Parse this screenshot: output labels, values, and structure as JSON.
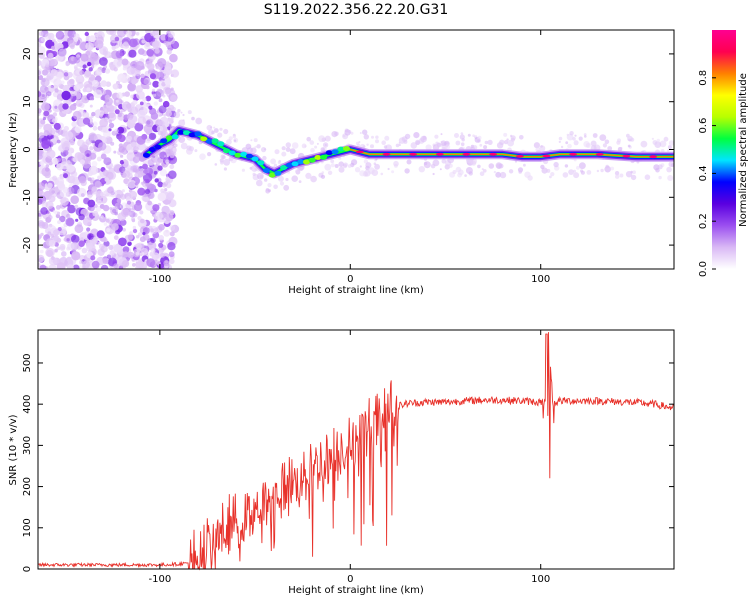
{
  "title": "S119.2022.356.22.20.G31",
  "colors": {
    "snr_line": "#e8312a",
    "colormap": [
      "#ffffff",
      "#d9b8f5",
      "#9b4ff0",
      "#5a00e0",
      "#0000ff",
      "#00e5ff",
      "#00ff40",
      "#b8ff00",
      "#ffff00",
      "#ff8000",
      "#ff0050",
      "#ff0090"
    ]
  },
  "chart_data": [
    {
      "type": "heatmap",
      "title": "",
      "xlabel": "Height of straight line (km)",
      "ylabel": "Frequency (Hz)",
      "xlim": [
        -164,
        170
      ],
      "ylim": [
        -25,
        25
      ],
      "xticks": [
        -100,
        0,
        100
      ],
      "yticks": [
        -20,
        -10,
        0,
        10,
        20
      ],
      "colorbar": {
        "label": "Normalized spectral amplitude",
        "range": [
          0,
          1
        ],
        "ticks": [
          0.0,
          0.2,
          0.4,
          0.6,
          0.8
        ]
      },
      "ridge": {
        "x": [
          -107,
          -100,
          -95,
          -90,
          -85,
          -80,
          -75,
          -70,
          -65,
          -60,
          -55,
          -50,
          -45,
          -40,
          -35,
          -30,
          -25,
          -20,
          -15,
          -10,
          -5,
          0,
          5,
          10,
          20,
          40,
          60,
          80,
          90,
          100,
          110,
          130,
          150,
          170
        ],
        "freq": [
          -1,
          1,
          2,
          4,
          3.5,
          3,
          2,
          1,
          0,
          -1,
          -1.5,
          -2,
          -4,
          -5,
          -4,
          -3,
          -2.5,
          -2,
          -1.5,
          -1,
          -0.5,
          0,
          -0.5,
          -1,
          -1,
          -1,
          -1,
          -1,
          -1.5,
          -1.5,
          -1,
          -1,
          -1.5,
          -1.5
        ]
      }
    },
    {
      "type": "line",
      "title": "",
      "xlabel": "Height of straight line (km)",
      "ylabel": "SNR (10 * v/v)",
      "xlim": [
        -164,
        170
      ],
      "ylim": [
        0,
        580
      ],
      "xticks": [
        -100,
        0,
        100
      ],
      "yticks": [
        0,
        100,
        200,
        300,
        400,
        500
      ],
      "envelope": {
        "x": [
          -164,
          -140,
          -120,
          -100,
          -90,
          -85,
          -80,
          -75,
          -70,
          -65,
          -60,
          -55,
          -50,
          -45,
          -40,
          -35,
          -30,
          -25,
          -20,
          -15,
          -10,
          -5,
          0,
          5,
          10,
          15,
          20,
          25,
          30,
          40,
          50,
          60,
          70,
          80,
          90,
          100,
          105,
          110,
          120,
          130,
          140,
          150,
          160,
          170
        ],
        "y": [
          10,
          10,
          10,
          10,
          12,
          15,
          25,
          50,
          80,
          100,
          115,
          130,
          150,
          165,
          180,
          195,
          210,
          225,
          240,
          255,
          270,
          285,
          300,
          320,
          340,
          360,
          380,
          395,
          402,
          405,
          405,
          408,
          410,
          410,
          408,
          405,
          400,
          408,
          408,
          408,
          406,
          404,
          400,
          390
        ]
      },
      "peaks": [
        {
          "x": 103,
          "y": 570
        },
        {
          "x": 104,
          "y": 575
        },
        {
          "x": 105,
          "y": 220
        }
      ]
    }
  ]
}
